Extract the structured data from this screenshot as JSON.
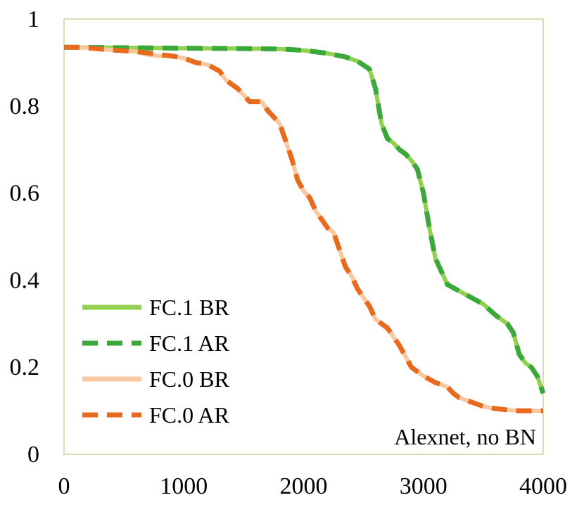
{
  "chart_data": {
    "type": "line",
    "title": "",
    "xlabel": "",
    "ylabel": "",
    "xlim": [
      0,
      4000
    ],
    "ylim": [
      0,
      1
    ],
    "x_ticks": [
      "0",
      "1000",
      "2000",
      "3000",
      "4000"
    ],
    "y_ticks": [
      "0",
      "0.2",
      "0.4",
      "0.6",
      "0.8",
      "1"
    ],
    "grid": false,
    "legend_position": "bottom-left",
    "annotation": "Alexnet, no BN",
    "series": [
      {
        "name": "FC.1 BR",
        "color": "#92d050",
        "style": "solid",
        "points": [
          [
            0,
            0.935
          ],
          [
            500,
            0.934
          ],
          [
            1000,
            0.933
          ],
          [
            1500,
            0.932
          ],
          [
            1800,
            0.931
          ],
          [
            2000,
            0.928
          ],
          [
            2200,
            0.921
          ],
          [
            2350,
            0.913
          ],
          [
            2450,
            0.903
          ],
          [
            2550,
            0.885
          ],
          [
            2600,
            0.84
          ],
          [
            2650,
            0.76
          ],
          [
            2700,
            0.725
          ],
          [
            2750,
            0.715
          ],
          [
            2800,
            0.7
          ],
          [
            2850,
            0.69
          ],
          [
            2900,
            0.675
          ],
          [
            2950,
            0.655
          ],
          [
            3000,
            0.6
          ],
          [
            3050,
            0.52
          ],
          [
            3100,
            0.45
          ],
          [
            3150,
            0.42
          ],
          [
            3200,
            0.39
          ],
          [
            3300,
            0.375
          ],
          [
            3400,
            0.36
          ],
          [
            3500,
            0.345
          ],
          [
            3600,
            0.32
          ],
          [
            3700,
            0.3
          ],
          [
            3750,
            0.28
          ],
          [
            3800,
            0.23
          ],
          [
            3850,
            0.21
          ],
          [
            3900,
            0.2
          ],
          [
            3950,
            0.18
          ],
          [
            4000,
            0.14
          ]
        ]
      },
      {
        "name": "FC.1 AR",
        "color": "#3aa83a",
        "style": "dashed",
        "points": [
          [
            0,
            0.935
          ],
          [
            500,
            0.934
          ],
          [
            1000,
            0.933
          ],
          [
            1500,
            0.932
          ],
          [
            1800,
            0.931
          ],
          [
            2000,
            0.928
          ],
          [
            2200,
            0.921
          ],
          [
            2350,
            0.913
          ],
          [
            2450,
            0.903
          ],
          [
            2550,
            0.885
          ],
          [
            2600,
            0.84
          ],
          [
            2650,
            0.76
          ],
          [
            2700,
            0.725
          ],
          [
            2750,
            0.715
          ],
          [
            2800,
            0.7
          ],
          [
            2850,
            0.69
          ],
          [
            2900,
            0.675
          ],
          [
            2950,
            0.655
          ],
          [
            3000,
            0.6
          ],
          [
            3050,
            0.52
          ],
          [
            3100,
            0.45
          ],
          [
            3150,
            0.42
          ],
          [
            3200,
            0.39
          ],
          [
            3300,
            0.375
          ],
          [
            3400,
            0.36
          ],
          [
            3500,
            0.345
          ],
          [
            3600,
            0.32
          ],
          [
            3700,
            0.3
          ],
          [
            3750,
            0.28
          ],
          [
            3800,
            0.23
          ],
          [
            3850,
            0.21
          ],
          [
            3900,
            0.2
          ],
          [
            3950,
            0.18
          ],
          [
            4000,
            0.14
          ]
        ]
      },
      {
        "name": "FC.0 BR",
        "color": "#f8c8a0",
        "style": "solid",
        "points": [
          [
            0,
            0.935
          ],
          [
            150,
            0.935
          ],
          [
            300,
            0.931
          ],
          [
            450,
            0.928
          ],
          [
            600,
            0.925
          ],
          [
            700,
            0.918
          ],
          [
            800,
            0.915
          ],
          [
            900,
            0.915
          ],
          [
            1000,
            0.91
          ],
          [
            1100,
            0.9
          ],
          [
            1200,
            0.895
          ],
          [
            1300,
            0.88
          ],
          [
            1350,
            0.86
          ],
          [
            1450,
            0.84
          ],
          [
            1550,
            0.81
          ],
          [
            1650,
            0.81
          ],
          [
            1700,
            0.79
          ],
          [
            1800,
            0.76
          ],
          [
            1850,
            0.72
          ],
          [
            1900,
            0.68
          ],
          [
            1950,
            0.63
          ],
          [
            2000,
            0.605
          ],
          [
            2050,
            0.59
          ],
          [
            2100,
            0.56
          ],
          [
            2150,
            0.54
          ],
          [
            2200,
            0.52
          ],
          [
            2250,
            0.51
          ],
          [
            2300,
            0.47
          ],
          [
            2350,
            0.43
          ],
          [
            2400,
            0.41
          ],
          [
            2450,
            0.38
          ],
          [
            2500,
            0.36
          ],
          [
            2550,
            0.34
          ],
          [
            2600,
            0.31
          ],
          [
            2700,
            0.29
          ],
          [
            2800,
            0.25
          ],
          [
            2900,
            0.2
          ],
          [
            3000,
            0.18
          ],
          [
            3100,
            0.165
          ],
          [
            3150,
            0.16
          ],
          [
            3200,
            0.155
          ],
          [
            3250,
            0.14
          ],
          [
            3300,
            0.13
          ],
          [
            3350,
            0.125
          ],
          [
            3400,
            0.12
          ],
          [
            3500,
            0.11
          ],
          [
            3600,
            0.105
          ],
          [
            3700,
            0.102
          ],
          [
            3800,
            0.1
          ],
          [
            4000,
            0.1
          ]
        ]
      },
      {
        "name": "FC.0 AR",
        "color": "#e86a1e",
        "style": "dashed",
        "points": [
          [
            0,
            0.935
          ],
          [
            150,
            0.935
          ],
          [
            300,
            0.931
          ],
          [
            450,
            0.928
          ],
          [
            600,
            0.925
          ],
          [
            700,
            0.922
          ],
          [
            800,
            0.918
          ],
          [
            900,
            0.915
          ],
          [
            1000,
            0.91
          ],
          [
            1100,
            0.9
          ],
          [
            1200,
            0.895
          ],
          [
            1300,
            0.88
          ],
          [
            1350,
            0.86
          ],
          [
            1450,
            0.84
          ],
          [
            1550,
            0.81
          ],
          [
            1650,
            0.81
          ],
          [
            1700,
            0.79
          ],
          [
            1800,
            0.76
          ],
          [
            1850,
            0.72
          ],
          [
            1900,
            0.68
          ],
          [
            1950,
            0.63
          ],
          [
            2000,
            0.605
          ],
          [
            2050,
            0.59
          ],
          [
            2100,
            0.56
          ],
          [
            2150,
            0.54
          ],
          [
            2200,
            0.52
          ],
          [
            2250,
            0.51
          ],
          [
            2300,
            0.47
          ],
          [
            2350,
            0.43
          ],
          [
            2400,
            0.41
          ],
          [
            2450,
            0.38
          ],
          [
            2500,
            0.36
          ],
          [
            2550,
            0.34
          ],
          [
            2600,
            0.31
          ],
          [
            2700,
            0.29
          ],
          [
            2800,
            0.25
          ],
          [
            2900,
            0.2
          ],
          [
            3000,
            0.18
          ],
          [
            3100,
            0.165
          ],
          [
            3150,
            0.16
          ],
          [
            3200,
            0.155
          ],
          [
            3250,
            0.14
          ],
          [
            3300,
            0.13
          ],
          [
            3350,
            0.125
          ],
          [
            3400,
            0.12
          ],
          [
            3500,
            0.11
          ],
          [
            3600,
            0.105
          ],
          [
            3700,
            0.102
          ],
          [
            3800,
            0.1
          ],
          [
            4000,
            0.1
          ]
        ]
      }
    ]
  }
}
